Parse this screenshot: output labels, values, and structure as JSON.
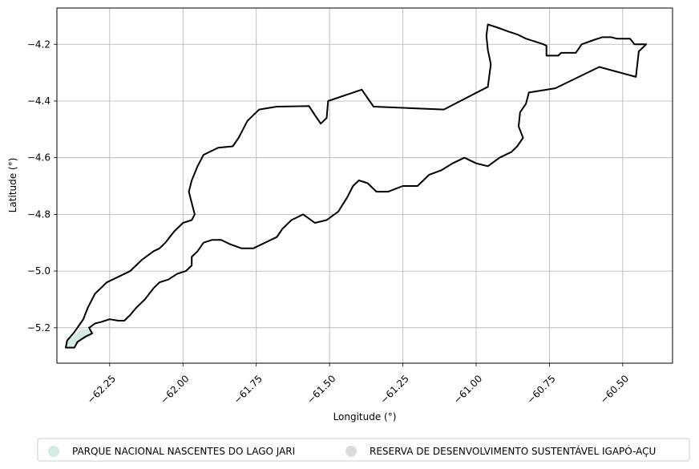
{
  "chart_data": {
    "type": "map",
    "xlabel": "Longitude (°)",
    "ylabel": "Latitude (°)",
    "xlim": [
      -62.43,
      -60.33
    ],
    "ylim": [
      -5.325,
      -4.072
    ],
    "grid": true,
    "x_ticks": [
      {
        "value": -62.25,
        "label": "−62.25"
      },
      {
        "value": -62.0,
        "label": "−62.00"
      },
      {
        "value": -61.75,
        "label": "−61.75"
      },
      {
        "value": -61.5,
        "label": "−61.50"
      },
      {
        "value": -61.25,
        "label": "−61.25"
      },
      {
        "value": -61.0,
        "label": "−61.00"
      },
      {
        "value": -60.75,
        "label": "−60.75"
      },
      {
        "value": -60.5,
        "label": "−60.50"
      }
    ],
    "y_ticks": [
      {
        "value": -4.2,
        "label": "−4.2"
      },
      {
        "value": -4.4,
        "label": "−4.4"
      },
      {
        "value": -4.6,
        "label": "−4.6"
      },
      {
        "value": -4.8,
        "label": "−4.8"
      },
      {
        "value": -5.0,
        "label": "−5.0"
      },
      {
        "value": -5.2,
        "label": "−5.2"
      }
    ],
    "legend_position": "bottom-center",
    "legend": [
      {
        "label": "PARQUE NACIONAL NASCENTES DO LAGO JARI",
        "color": "#d2ece2"
      },
      {
        "label": "RESERVA DE DESENVOLVIMENTO SUSTENTÁVEL IGAPÓ-AÇU",
        "color": "#dcdcdc"
      }
    ],
    "polygons": [
      {
        "name": "PARQUE NACIONAL NASCENTES DO LAGO JARI",
        "fill": "#d2ece2",
        "coords": [
          [
            -62.395,
            -5.245
          ],
          [
            -62.365,
            -5.22
          ],
          [
            -62.345,
            -5.205
          ],
          [
            -62.32,
            -5.205
          ],
          [
            -62.3,
            -5.215
          ],
          [
            -62.315,
            -5.232
          ],
          [
            -62.345,
            -5.24
          ],
          [
            -62.37,
            -5.27
          ],
          [
            -62.4,
            -5.27
          ]
        ]
      },
      {
        "name": "RESERVA DE DESENVOLVIMENTO SUSTENTÁVEL IGAPÓ-AÇU",
        "fill": "none",
        "coords": [
          [
            -62.395,
            -5.245
          ],
          [
            -62.37,
            -5.215
          ],
          [
            -62.34,
            -5.17
          ],
          [
            -62.325,
            -5.13
          ],
          [
            -62.3,
            -5.08
          ],
          [
            -62.26,
            -5.04
          ],
          [
            -62.22,
            -5.02
          ],
          [
            -62.18,
            -5.0
          ],
          [
            -62.14,
            -4.96
          ],
          [
            -62.1,
            -4.93
          ],
          [
            -62.08,
            -4.92
          ],
          [
            -62.06,
            -4.9
          ],
          [
            -62.03,
            -4.86
          ],
          [
            -62.0,
            -4.83
          ],
          [
            -61.97,
            -4.82
          ],
          [
            -61.96,
            -4.8
          ],
          [
            -61.97,
            -4.76
          ],
          [
            -61.98,
            -4.72
          ],
          [
            -61.97,
            -4.68
          ],
          [
            -61.95,
            -4.63
          ],
          [
            -61.93,
            -4.59
          ],
          [
            -61.88,
            -4.565
          ],
          [
            -61.83,
            -4.56
          ],
          [
            -61.81,
            -4.53
          ],
          [
            -61.78,
            -4.47
          ],
          [
            -61.74,
            -4.43
          ],
          [
            -61.68,
            -4.42
          ],
          [
            -61.57,
            -4.418
          ],
          [
            -61.55,
            -4.45
          ],
          [
            -61.53,
            -4.48
          ],
          [
            -61.51,
            -4.46
          ],
          [
            -61.505,
            -4.4
          ],
          [
            -61.39,
            -4.36
          ],
          [
            -61.35,
            -4.42
          ],
          [
            -61.11,
            -4.43
          ],
          [
            -60.96,
            -4.35
          ],
          [
            -60.95,
            -4.27
          ],
          [
            -60.96,
            -4.22
          ],
          [
            -60.965,
            -4.17
          ],
          [
            -60.96,
            -4.13
          ],
          [
            -60.93,
            -4.14
          ],
          [
            -60.89,
            -4.155
          ],
          [
            -60.86,
            -4.165
          ],
          [
            -60.83,
            -4.18
          ],
          [
            -60.8,
            -4.19
          ],
          [
            -60.77,
            -4.2
          ],
          [
            -60.76,
            -4.205
          ],
          [
            -60.76,
            -4.24
          ],
          [
            -60.72,
            -4.24
          ],
          [
            -60.71,
            -4.23
          ],
          [
            -60.66,
            -4.23
          ],
          [
            -60.64,
            -4.2
          ],
          [
            -60.6,
            -4.185
          ],
          [
            -60.57,
            -4.175
          ],
          [
            -60.54,
            -4.175
          ],
          [
            -60.52,
            -4.18
          ],
          [
            -60.475,
            -4.18
          ],
          [
            -60.46,
            -4.2
          ],
          [
            -60.42,
            -4.2
          ],
          [
            -60.445,
            -4.225
          ],
          [
            -60.45,
            -4.27
          ],
          [
            -60.455,
            -4.315
          ],
          [
            -60.58,
            -4.28
          ],
          [
            -60.73,
            -4.355
          ],
          [
            -60.82,
            -4.37
          ],
          [
            -60.83,
            -4.41
          ],
          [
            -60.85,
            -4.44
          ],
          [
            -60.855,
            -4.49
          ],
          [
            -60.84,
            -4.53
          ],
          [
            -60.86,
            -4.56
          ],
          [
            -60.88,
            -4.58
          ],
          [
            -60.92,
            -4.6
          ],
          [
            -60.96,
            -4.63
          ],
          [
            -61.0,
            -4.62
          ],
          [
            -61.04,
            -4.6
          ],
          [
            -61.08,
            -4.62
          ],
          [
            -61.12,
            -4.645
          ],
          [
            -61.16,
            -4.66
          ],
          [
            -61.2,
            -4.7
          ],
          [
            -61.25,
            -4.7
          ],
          [
            -61.3,
            -4.72
          ],
          [
            -61.34,
            -4.72
          ],
          [
            -61.37,
            -4.69
          ],
          [
            -61.4,
            -4.68
          ],
          [
            -61.42,
            -4.7
          ],
          [
            -61.44,
            -4.74
          ],
          [
            -61.47,
            -4.79
          ],
          [
            -61.51,
            -4.82
          ],
          [
            -61.55,
            -4.83
          ],
          [
            -61.59,
            -4.8
          ],
          [
            -61.63,
            -4.82
          ],
          [
            -61.66,
            -4.85
          ],
          [
            -61.68,
            -4.88
          ],
          [
            -61.72,
            -4.9
          ],
          [
            -61.76,
            -4.92
          ],
          [
            -61.8,
            -4.92
          ],
          [
            -61.84,
            -4.905
          ],
          [
            -61.87,
            -4.89
          ],
          [
            -61.9,
            -4.89
          ],
          [
            -61.93,
            -4.9
          ],
          [
            -61.95,
            -4.93
          ],
          [
            -61.97,
            -4.95
          ],
          [
            -61.97,
            -4.98
          ],
          [
            -61.99,
            -5.0
          ],
          [
            -62.02,
            -5.01
          ],
          [
            -62.05,
            -5.03
          ],
          [
            -62.08,
            -5.04
          ],
          [
            -62.1,
            -5.06
          ],
          [
            -62.13,
            -5.1
          ],
          [
            -62.16,
            -5.13
          ],
          [
            -62.18,
            -5.155
          ],
          [
            -62.2,
            -5.175
          ],
          [
            -62.22,
            -5.175
          ],
          [
            -62.25,
            -5.17
          ],
          [
            -62.28,
            -5.18
          ],
          [
            -62.3,
            -5.185
          ],
          [
            -62.32,
            -5.2
          ],
          [
            -62.31,
            -5.22
          ],
          [
            -62.33,
            -5.23
          ],
          [
            -62.345,
            -5.24
          ],
          [
            -62.36,
            -5.25
          ],
          [
            -62.37,
            -5.27
          ],
          [
            -62.4,
            -5.27
          ],
          [
            -62.395,
            -5.245
          ]
        ]
      }
    ]
  }
}
